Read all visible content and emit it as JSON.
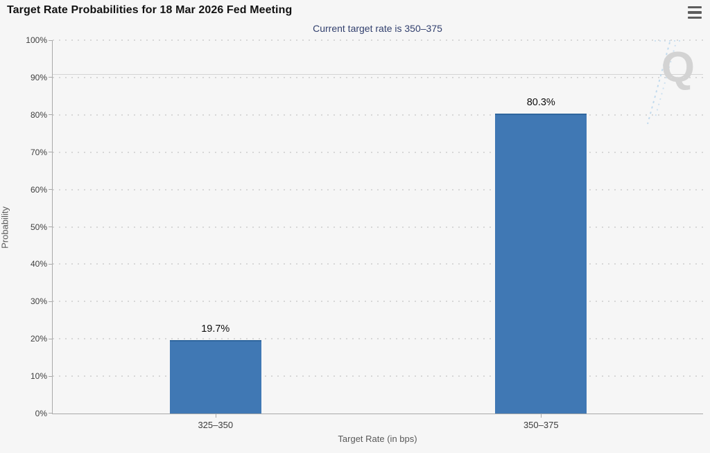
{
  "header": {
    "title": "Target Rate Probabilities for 18 Mar 2026 Fed Meeting"
  },
  "menu": {
    "icon": "hamburger-menu-icon"
  },
  "watermark": {
    "letter": "Q"
  },
  "chart_data": {
    "type": "bar",
    "title": "Target Rate Probabilities for 18 Mar 2026 Fed Meeting",
    "subtitle": "Current target rate is 350–375",
    "categories": [
      "325–350",
      "350–375"
    ],
    "values": [
      19.7,
      80.3
    ],
    "value_labels": [
      "19.7%",
      "80.3%"
    ],
    "xlabel": "Target Rate (in bps)",
    "ylabel": "Probability",
    "ylim": [
      0,
      100
    ],
    "ytick_step": 10,
    "ytick_labels": [
      "0%",
      "10%",
      "20%",
      "30%",
      "40%",
      "50%",
      "60%",
      "70%",
      "80%",
      "90%",
      "100%"
    ],
    "grid": "horizontal-dotted",
    "legend": "none",
    "bar_color": "#4078b4",
    "bar_edge_color": "#2f669e",
    "subtitle_color": "#32406e"
  }
}
